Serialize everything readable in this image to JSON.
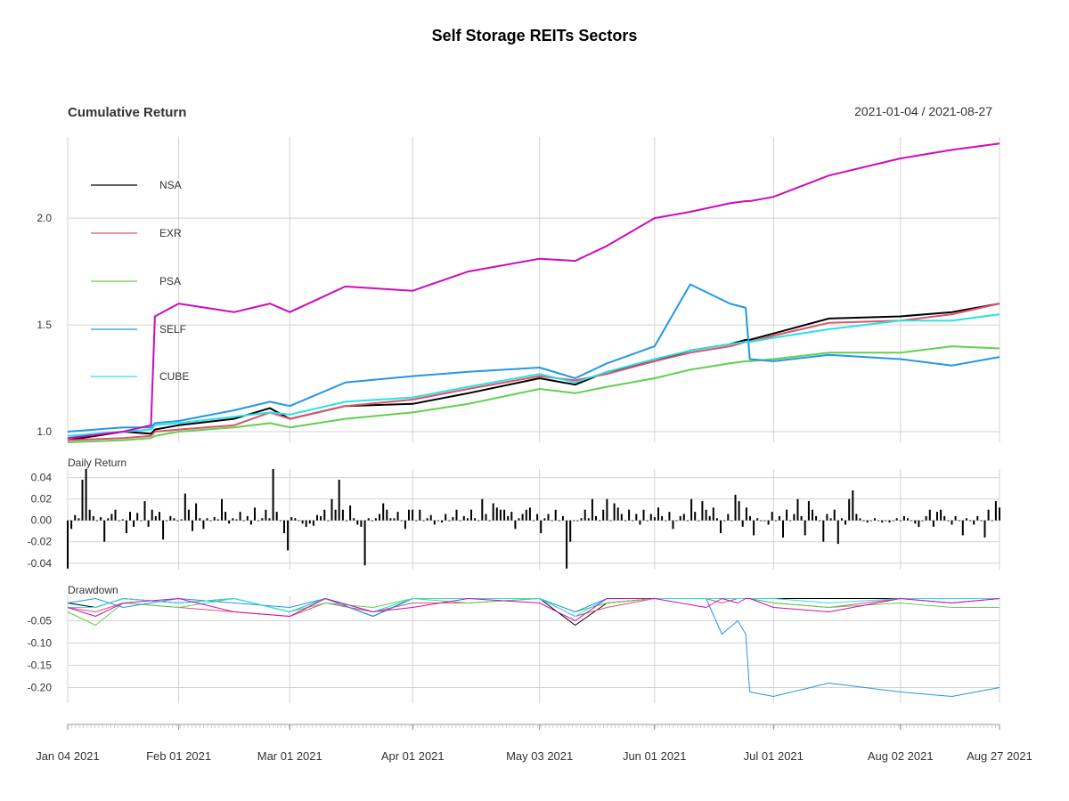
{
  "title": "Self Storage REITs Sectors",
  "date_range": "2021-01-04 / 2021-08-27",
  "chart_data": [
    {
      "type": "line",
      "title": "Cumulative Return",
      "ylim": [
        0.95,
        2.38
      ],
      "yticks": [
        1.0,
        1.5,
        2.0
      ],
      "ytick_labels": [
        "1.0",
        "1.5",
        "2.0"
      ],
      "grid": true,
      "legend_placement": "left",
      "x": [
        "2021-01-04",
        "2021-01-18",
        "2021-01-25",
        "2021-01-26",
        "2021-02-01",
        "2021-02-15",
        "2021-02-24",
        "2021-03-01",
        "2021-03-15",
        "2021-04-01",
        "2021-04-15",
        "2021-05-03",
        "2021-05-12",
        "2021-05-20",
        "2021-06-01",
        "2021-06-10",
        "2021-06-20",
        "2021-06-24",
        "2021-06-25",
        "2021-07-01",
        "2021-07-15",
        "2021-08-02",
        "2021-08-15",
        "2021-08-27"
      ],
      "series": [
        {
          "name": "NSA",
          "color": "#000000",
          "values": [
            0.96,
            1.0,
            0.99,
            1.01,
            1.03,
            1.06,
            1.11,
            1.06,
            1.12,
            1.13,
            1.18,
            1.25,
            1.22,
            1.28,
            1.33,
            1.38,
            1.41,
            1.43,
            1.43,
            1.46,
            1.53,
            1.54,
            1.56,
            1.6
          ]
        },
        {
          "name": "EXR",
          "color": "#DF536B",
          "values": [
            0.96,
            0.97,
            0.98,
            1.0,
            1.01,
            1.03,
            1.09,
            1.06,
            1.12,
            1.15,
            1.2,
            1.26,
            1.24,
            1.27,
            1.33,
            1.37,
            1.4,
            1.42,
            1.42,
            1.45,
            1.51,
            1.52,
            1.55,
            1.6
          ]
        },
        {
          "name": "PSA",
          "color": "#61D04F",
          "values": [
            0.95,
            0.96,
            0.97,
            0.98,
            1.0,
            1.02,
            1.04,
            1.02,
            1.06,
            1.09,
            1.13,
            1.2,
            1.18,
            1.21,
            1.25,
            1.29,
            1.32,
            1.33,
            1.33,
            1.34,
            1.37,
            1.37,
            1.4,
            1.39
          ]
        },
        {
          "name": "SELF",
          "color": "#2297E6",
          "values": [
            1.0,
            1.02,
            1.02,
            1.04,
            1.05,
            1.1,
            1.14,
            1.12,
            1.23,
            1.26,
            1.28,
            1.3,
            1.25,
            1.32,
            1.4,
            1.69,
            1.6,
            1.58,
            1.34,
            1.33,
            1.36,
            1.34,
            1.31,
            1.35
          ]
        },
        {
          "name": "CUBE",
          "color": "#28E2E5",
          "values": [
            0.98,
            1.0,
            1.01,
            1.03,
            1.04,
            1.07,
            1.09,
            1.08,
            1.14,
            1.16,
            1.21,
            1.27,
            1.23,
            1.28,
            1.34,
            1.38,
            1.41,
            1.42,
            1.42,
            1.44,
            1.48,
            1.52,
            1.52,
            1.55
          ]
        },
        {
          "name": "",
          "color": "#CD0BBC",
          "values": [
            0.97,
            1.0,
            1.03,
            1.54,
            1.6,
            1.56,
            1.6,
            1.56,
            1.68,
            1.66,
            1.75,
            1.81,
            1.8,
            1.87,
            2.0,
            2.03,
            2.07,
            2.08,
            2.08,
            2.1,
            2.2,
            2.28,
            2.32,
            2.35
          ]
        }
      ]
    },
    {
      "type": "bar",
      "title": "Daily Return",
      "ylim": [
        -0.046,
        0.048
      ],
      "yticks": [
        -0.04,
        -0.02,
        0.0,
        0.02,
        0.04
      ],
      "ytick_labels": [
        "-0.04",
        "-0.02",
        "0.00",
        "0.02",
        "0.04"
      ],
      "grid": true,
      "values": [
        -0.045,
        -0.008,
        0.005,
        0.002,
        0.038,
        0.048,
        0.01,
        0.004,
        0.0,
        0.003,
        -0.02,
        0.002,
        0.006,
        0.01,
        0.0,
        0.001,
        -0.012,
        0.008,
        -0.006,
        0.007,
        0.0,
        0.018,
        -0.006,
        0.01,
        0.004,
        0.008,
        -0.018,
        0.0,
        0.004,
        0.002,
        0.0,
        0.001,
        0.025,
        0.01,
        -0.01,
        0.016,
        0.002,
        -0.008,
        0.002,
        0.0,
        0.003,
        0.001,
        0.02,
        0.008,
        -0.003,
        0.002,
        0.001,
        0.008,
        0.0,
        0.004,
        -0.004,
        0.012,
        0.0,
        0.002,
        0.01,
        0.002,
        0.048,
        0.008,
        0.0,
        -0.012,
        -0.028,
        0.003,
        0.002,
        0.0,
        -0.003,
        -0.006,
        -0.003,
        -0.005,
        0.005,
        0.004,
        0.01,
        0.0,
        0.02,
        0.01,
        0.038,
        0.01,
        0.0,
        0.014,
        0.002,
        -0.004,
        -0.006,
        -0.042,
        0.002,
        0.0,
        0.002,
        0.006,
        0.016,
        0.01,
        0.002,
        0.002,
        0.008,
        0.0,
        -0.008,
        0.01,
        0.01,
        0.0,
        0.01,
        0.0,
        0.002,
        0.005,
        -0.004,
        0.0,
        -0.002,
        0.006,
        0.0,
        0.003,
        0.01,
        0.0,
        0.004,
        0.002,
        0.01,
        0.002,
        0.0,
        0.02,
        0.006,
        0.0,
        0.016,
        0.012,
        0.01,
        0.01,
        0.004,
        0.008,
        -0.008,
        0.002,
        0.006,
        0.01,
        0.012,
        0.0,
        0.006,
        -0.012,
        0.002,
        0.006,
        0.0,
        0.01,
        0.0,
        0.004,
        -0.045,
        -0.02,
        0.0,
        0.0,
        0.002,
        0.01,
        0.002,
        0.02,
        0.004,
        0.0,
        0.01,
        0.02,
        0.0,
        0.016,
        0.012,
        0.006,
        0.0,
        0.01,
        0.0,
        0.006,
        -0.004,
        0.01,
        0.0,
        0.006,
        0.003,
        0.012,
        0.004,
        0.0,
        0.008,
        -0.008,
        0.0,
        0.004,
        0.006,
        0.0,
        0.02,
        0.008,
        0.0,
        0.018,
        0.01,
        0.004,
        0.012,
        0.002,
        -0.012,
        0.0,
        0.006,
        0.0,
        0.024,
        0.018,
        -0.006,
        0.012,
        0.004,
        -0.014,
        0.002,
        0.0,
        0.0,
        -0.004,
        0.008,
        0.0,
        0.004,
        -0.016,
        0.01,
        0.0,
        0.006,
        0.02,
        0.004,
        -0.014,
        0.018,
        0.01,
        0.004,
        0.0,
        -0.02,
        0.006,
        0.002,
        0.01,
        -0.022,
        0.002,
        -0.004,
        0.02,
        0.028,
        0.006,
        0.002,
        0.0,
        -0.002,
        0.0,
        0.002,
        0.0,
        -0.002,
        0.0,
        -0.002,
        0.0,
        0.002,
        0.0,
        0.004,
        0.002,
        0.0,
        -0.003,
        -0.006,
        0.0,
        0.004,
        0.01,
        -0.006,
        0.008,
        0.01,
        0.004,
        0.0,
        -0.004,
        0.004,
        0.0,
        -0.014,
        0.002,
        0.0,
        -0.004,
        0.004,
        0.0,
        -0.016,
        0.01,
        0.0,
        0.018,
        0.012
      ]
    },
    {
      "type": "line",
      "title": "Drawdown",
      "ylim": [
        -0.235,
        0.005
      ],
      "yticks": [
        -0.05,
        -0.1,
        -0.15,
        -0.2
      ],
      "ytick_labels": [
        "-0.05",
        "-0.10",
        "-0.15",
        "-0.20"
      ],
      "grid": true,
      "x": [
        "2021-01-04",
        "2021-01-11",
        "2021-01-18",
        "2021-02-01",
        "2021-02-15",
        "2021-03-01",
        "2021-03-10",
        "2021-03-22",
        "2021-04-01",
        "2021-04-15",
        "2021-05-03",
        "2021-05-12",
        "2021-05-20",
        "2021-06-01",
        "2021-06-14",
        "2021-06-18",
        "2021-06-22",
        "2021-06-24",
        "2021-06-25",
        "2021-07-01",
        "2021-07-15",
        "2021-08-02",
        "2021-08-15",
        "2021-08-27"
      ],
      "series": [
        {
          "name": "NSA",
          "color": "#000000",
          "values": [
            -0.01,
            -0.02,
            0.0,
            -0.01,
            0.0,
            -0.03,
            0.0,
            -0.04,
            0.0,
            0.0,
            0.0,
            -0.06,
            -0.01,
            0.0,
            0.0,
            0.0,
            0.0,
            0.0,
            0.0,
            0.0,
            0.0,
            0.0,
            0.0,
            0.0
          ]
        },
        {
          "name": "EXR",
          "color": "#DF536B",
          "values": [
            -0.02,
            -0.03,
            -0.01,
            -0.02,
            -0.03,
            -0.04,
            -0.01,
            -0.03,
            -0.01,
            -0.01,
            0.0,
            -0.04,
            -0.02,
            0.0,
            0.0,
            -0.01,
            0.0,
            0.0,
            0.0,
            -0.01,
            -0.02,
            0.0,
            -0.01,
            0.0
          ]
        },
        {
          "name": "PSA",
          "color": "#61D04F",
          "values": [
            -0.03,
            -0.06,
            -0.01,
            -0.02,
            0.0,
            -0.03,
            -0.01,
            -0.02,
            0.0,
            -0.01,
            0.0,
            -0.03,
            -0.01,
            0.0,
            0.0,
            0.0,
            0.0,
            0.0,
            0.0,
            -0.01,
            -0.02,
            -0.01,
            -0.02,
            -0.02
          ]
        },
        {
          "name": "SELF",
          "color": "#2297E6",
          "values": [
            -0.01,
            0.0,
            -0.02,
            0.0,
            -0.01,
            -0.02,
            0.0,
            -0.04,
            0.0,
            0.0,
            0.0,
            -0.03,
            0.0,
            0.0,
            0.0,
            -0.08,
            -0.05,
            -0.08,
            -0.21,
            -0.22,
            -0.19,
            -0.21,
            -0.22,
            -0.2
          ]
        },
        {
          "name": "CUBE",
          "color": "#28E2E5",
          "values": [
            -0.02,
            -0.02,
            0.0,
            -0.01,
            0.0,
            -0.03,
            0.0,
            -0.03,
            0.0,
            0.0,
            0.0,
            -0.04,
            0.0,
            0.0,
            0.0,
            0.0,
            0.0,
            0.0,
            0.0,
            0.0,
            -0.01,
            0.0,
            0.0,
            0.0
          ]
        },
        {
          "name": "",
          "color": "#CD0BBC",
          "values": [
            -0.02,
            -0.04,
            -0.01,
            0.0,
            -0.03,
            -0.04,
            0.0,
            -0.03,
            -0.02,
            0.0,
            -0.01,
            -0.05,
            0.0,
            0.0,
            -0.02,
            0.0,
            -0.01,
            0.0,
            0.0,
            -0.02,
            -0.03,
            0.0,
            -0.01,
            0.0
          ]
        }
      ]
    }
  ],
  "x_axis": {
    "start": "2021-01-04",
    "end": "2021-08-27",
    "ticks": [
      {
        "date": "2021-01-04",
        "label": "Jan 04 2021"
      },
      {
        "date": "2021-02-01",
        "label": "Feb 01 2021"
      },
      {
        "date": "2021-03-01",
        "label": "Mar 01 2021"
      },
      {
        "date": "2021-04-01",
        "label": "Apr 01 2021"
      },
      {
        "date": "2021-05-03",
        "label": "May 03 2021"
      },
      {
        "date": "2021-06-01",
        "label": "Jun 01 2021"
      },
      {
        "date": "2021-07-01",
        "label": "Jul 01 2021"
      },
      {
        "date": "2021-08-02",
        "label": "Aug 02 2021"
      },
      {
        "date": "2021-08-27",
        "label": "Aug 27 2021"
      }
    ]
  }
}
